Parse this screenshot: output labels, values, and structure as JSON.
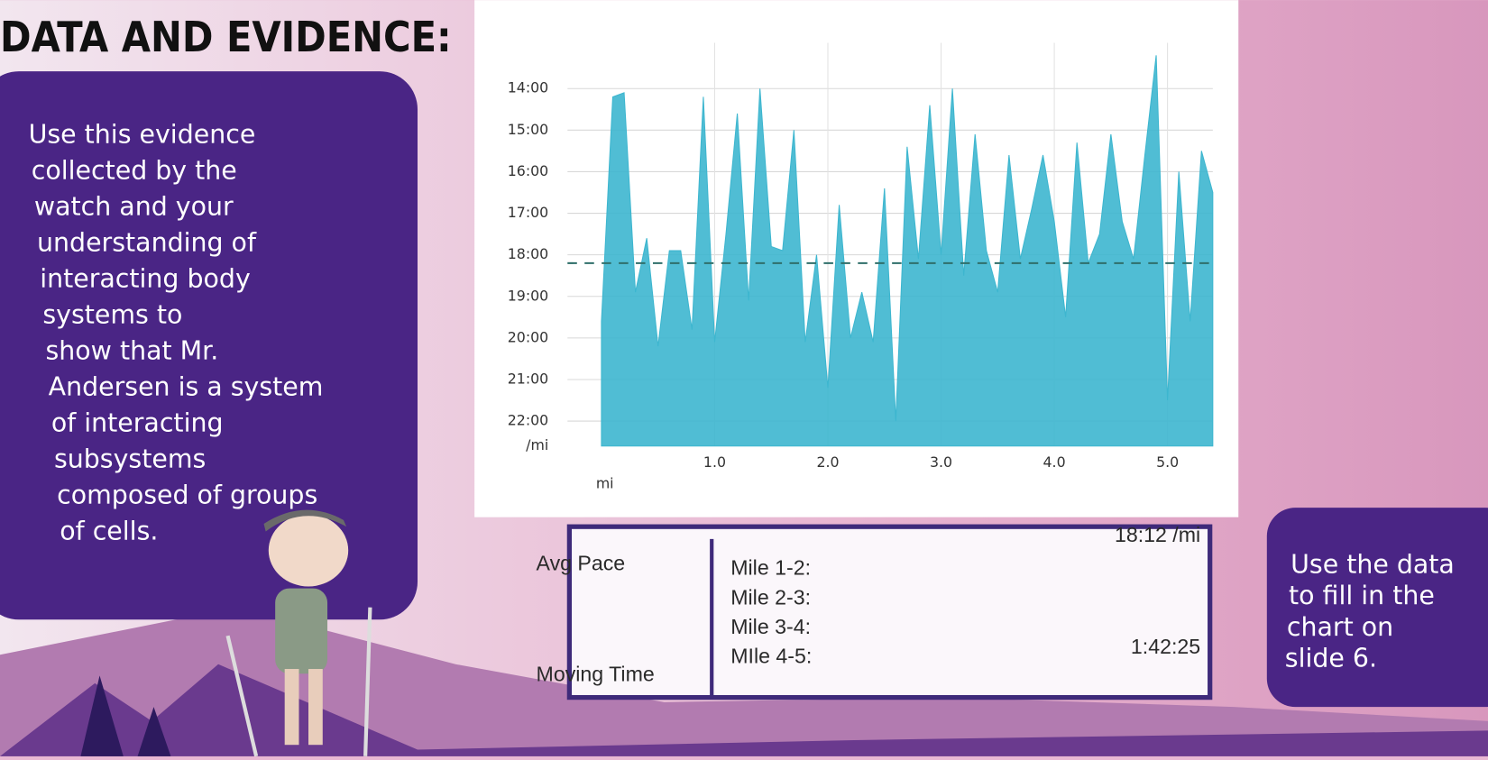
{
  "header": {
    "title": "DATA AND EVIDENCE:"
  },
  "evidence": {
    "lines": [
      "Use this evidence",
      "collected by the",
      "watch and your",
      "understanding of",
      "interacting body",
      "systems to",
      "show that Mr.",
      "Andersen is a system",
      "of interacting",
      "subsystems",
      "composed of groups",
      "of cells."
    ]
  },
  "chart_data": {
    "type": "area",
    "color": "#3db6cf",
    "x": [
      0,
      0.1,
      0.2,
      0.3,
      0.4,
      0.5,
      0.6,
      0.7,
      0.8,
      0.9,
      1.0,
      1.1,
      1.2,
      1.3,
      1.4,
      1.5,
      1.6,
      1.7,
      1.8,
      1.9,
      2.0,
      2.1,
      2.2,
      2.3,
      2.4,
      2.5,
      2.6,
      2.7,
      2.8,
      2.9,
      3.0,
      3.1,
      3.2,
      3.3,
      3.4,
      3.5,
      3.6,
      3.7,
      3.8,
      3.9,
      4.0,
      4.1,
      4.2,
      4.3,
      4.4,
      4.5,
      4.6,
      4.7,
      4.8,
      4.9,
      5.0,
      5.1,
      5.2,
      5.3,
      5.4
    ],
    "values": [
      19.6,
      14.2,
      14.1,
      18.9,
      17.6,
      20.2,
      17.9,
      17.9,
      19.8,
      14.2,
      20.1,
      17.5,
      14.6,
      19.1,
      14.0,
      17.8,
      17.9,
      15.0,
      20.1,
      18.0,
      21.2,
      16.8,
      20.0,
      18.9,
      20.1,
      16.4,
      22.0,
      15.4,
      18.1,
      14.4,
      18.0,
      14.0,
      18.5,
      15.1,
      17.9,
      18.9,
      15.6,
      18.1,
      16.9,
      15.6,
      17.2,
      19.5,
      15.3,
      18.2,
      17.5,
      15.1,
      17.2,
      18.1,
      15.6,
      13.2,
      21.5,
      16.0,
      19.6,
      15.5,
      16.5
    ],
    "xlim": [
      -0.3,
      5.4
    ],
    "ylim": [
      22.6,
      12.9
    ],
    "xticks": [
      {
        "value": 1,
        "label": "1.0"
      },
      {
        "value": 2,
        "label": "2.0"
      },
      {
        "value": 3,
        "label": "3.0"
      },
      {
        "value": 4,
        "label": "4.0"
      },
      {
        "value": 5,
        "label": "5.0"
      }
    ],
    "yticks": [
      {
        "value": 14,
        "label": "14:00"
      },
      {
        "value": 15,
        "label": "15:00"
      },
      {
        "value": 16,
        "label": "16:00"
      },
      {
        "value": 17,
        "label": "17:00"
      },
      {
        "value": 18,
        "label": "18:00"
      },
      {
        "value": 19,
        "label": "19:00"
      },
      {
        "value": 20,
        "label": "20:00"
      },
      {
        "value": 21,
        "label": "21:00"
      },
      {
        "value": 22,
        "label": "22:00"
      }
    ],
    "x_label": "mi",
    "y_label": "/mi",
    "average": {
      "value": 18.2,
      "label": "18:12 /mi"
    },
    "grid": true
  },
  "table": {
    "avg_pace": "Avg Pace",
    "moving_time": "Moving Time",
    "moving_time_value": "1:42:25",
    "rows": [
      "Mile 1-2:",
      "Mile 2-3:",
      "Mile 3-4:",
      "MIle 4-5:"
    ]
  },
  "note": {
    "lines": [
      "Use the data",
      "to fill in the",
      "chart on",
      "slide 6."
    ]
  }
}
